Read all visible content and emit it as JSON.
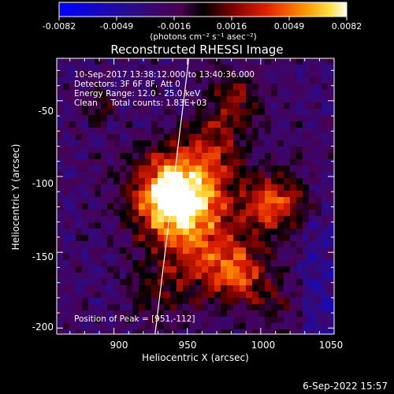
{
  "chart_data": {
    "type": "heatmap",
    "title": "Reconstructed RHESSI Image",
    "xlabel": "Heliocentric X (arcsec)",
    "ylabel": "Heliocentric Y (arcsec)",
    "xlim": [
      861,
      1050
    ],
    "ylim": [
      -204,
      -22
    ],
    "x_ticks": [
      "900",
      "950",
      "1000",
      "1050"
    ],
    "y_ticks": [
      "-50",
      "-100",
      "-150",
      "-200"
    ],
    "colorbar": {
      "ticks": [
        "-0.0082",
        "-0.0049",
        "-0.0016",
        "0.0016",
        "0.0049",
        "0.0082"
      ],
      "range": [
        -0.0082,
        0.0082
      ],
      "unit_label": "(photons cm⁻² s⁻¹ asec⁻²)"
    },
    "annotations": [
      "10-Sep-2017 13:38:12.000 to 13:40:36.000",
      "Detectors: 3F 6F 8F, Att 0",
      "Energy Range: 12.0 - 25.0 keV",
      "Clean     Total counts: 1.83E+03"
    ],
    "peak_label": "Position of Peak = [951,-112]",
    "peak": {
      "x": 951,
      "y": -112
    },
    "sources": [
      {
        "x": 950,
        "y": -112,
        "peak": 0.0082,
        "width_arcsec": 20
      },
      {
        "x": 935,
        "y": -115,
        "peak": 0.0062,
        "width_arcsec": 18
      },
      {
        "x": 1008,
        "y": -118,
        "peak": 0.0068,
        "width_arcsec": 14
      },
      {
        "x": 985,
        "y": -165,
        "peak": 0.0058,
        "width_arcsec": 15
      },
      {
        "x": 960,
        "y": -150,
        "peak": 0.0038,
        "width_arcsec": 18
      },
      {
        "x": 930,
        "y": -175,
        "peak": 0.003,
        "width_arcsec": 16
      },
      {
        "x": 982,
        "y": -50,
        "peak": 0.0036,
        "width_arcsec": 14
      },
      {
        "x": 968,
        "y": -78,
        "peak": 0.0034,
        "width_arcsec": 14
      },
      {
        "x": 890,
        "y": -55,
        "peak": 0.0026,
        "width_arcsec": 8
      },
      {
        "x": 1010,
        "y": -185,
        "peak": 0.0022,
        "width_arcsec": 10
      }
    ],
    "limb_line": [
      [
        951,
        -22
      ],
      [
        928,
        -204
      ]
    ]
  },
  "footer": {
    "date": "6-Sep-2022 15:57"
  }
}
